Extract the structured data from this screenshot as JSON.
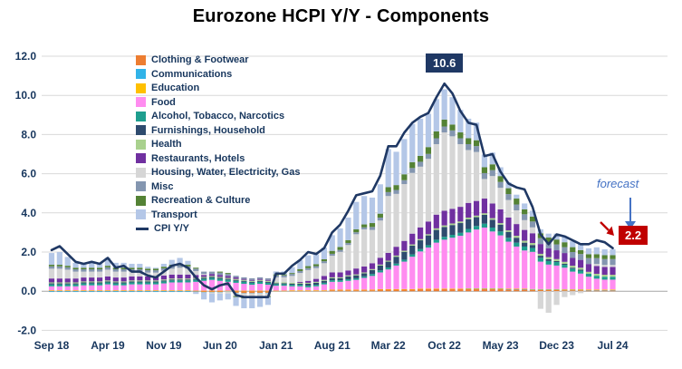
{
  "title": "Eurozone HCPI Y/Y - Components",
  "annotations": {
    "peak": {
      "label": "10.6"
    },
    "forecast": {
      "label": "forecast"
    },
    "end": {
      "label": "2.2"
    }
  },
  "colors": {
    "peak_box": "#1F3864",
    "end_box": "#C00000",
    "forecast": "#4472C4",
    "grid": "#D9D9D9",
    "zero_line": "#A6A6A6",
    "axis_text": "#17365D",
    "line": "#1F3864"
  },
  "chart_data": {
    "type": "bar",
    "subtype": "stacked-bar-with-line-overlay",
    "title": "Eurozone HCPI Y/Y - Components",
    "xlabel": "",
    "ylabel": "",
    "ylim": [
      -2.0,
      12.0
    ],
    "ytick_step": 2.0,
    "grid": "horizontal",
    "legend_position": "inside-top-left",
    "x_tick_every": 7,
    "yticks": [
      {
        "v": 12,
        "label": "12.0"
      },
      {
        "v": 10,
        "label": "10.0"
      },
      {
        "v": 8,
        "label": "8.0"
      },
      {
        "v": 6,
        "label": "6.0"
      },
      {
        "v": 4,
        "label": "4.0"
      },
      {
        "v": 2,
        "label": "2.0"
      },
      {
        "v": 0,
        "label": "0.0"
      },
      {
        "v": -2,
        "label": "-2.0"
      }
    ],
    "categories": [
      "Sep 18",
      "Oct 18",
      "Nov 18",
      "Dec 18",
      "Jan 19",
      "Feb 19",
      "Mar 19",
      "Apr 19",
      "May 19",
      "Jun 19",
      "Jul 19",
      "Aug 19",
      "Sep 19",
      "Oct 19",
      "Nov 19",
      "Dec 19",
      "Jan 20",
      "Feb 20",
      "Mar 20",
      "Apr 20",
      "May 20",
      "Jun 20",
      "Jul 20",
      "Aug 20",
      "Sep 20",
      "Oct 20",
      "Nov 20",
      "Dec 20",
      "Jan 21",
      "Feb 21",
      "Mar 21",
      "Apr 21",
      "May 21",
      "Jun 21",
      "Jul 21",
      "Aug 21",
      "Sep 21",
      "Oct 21",
      "Nov 21",
      "Dec 21",
      "Jan 22",
      "Feb 22",
      "Mar 22",
      "Apr 22",
      "May 22",
      "Jun 22",
      "Jul 22",
      "Aug 22",
      "Sep 22",
      "Oct 22",
      "Nov 22",
      "Dec 22",
      "Jan 23",
      "Feb 23",
      "Mar 23",
      "Apr 23",
      "May 23",
      "Jun 23",
      "Jul 23",
      "Aug 23",
      "Sep 23",
      "Oct 23",
      "Nov 23",
      "Dec 23",
      "Jan 24",
      "Feb 24",
      "Mar 24",
      "Apr 24",
      "May 24",
      "Jun 24",
      "Jul 24"
    ],
    "series": [
      {
        "name": "Clothing & Footwear",
        "color": "#ED7D31",
        "values": [
          0.02,
          0.02,
          0.02,
          0.02,
          0.02,
          0.02,
          0.02,
          0.02,
          0.02,
          0.02,
          0.02,
          0.02,
          0.02,
          0.02,
          0.02,
          0.02,
          0.02,
          0.02,
          -0.02,
          -0.05,
          -0.05,
          -0.05,
          0.0,
          -0.08,
          -0.1,
          -0.1,
          -0.08,
          -0.08,
          0.0,
          0.0,
          0.02,
          0.02,
          0.02,
          0.02,
          0.02,
          0.05,
          0.05,
          0.05,
          0.05,
          0.05,
          0.05,
          0.08,
          0.08,
          0.08,
          0.08,
          0.08,
          0.1,
          0.1,
          0.1,
          0.1,
          0.1,
          0.1,
          0.1,
          0.1,
          0.1,
          0.1,
          0.1,
          0.08,
          0.08,
          0.08,
          0.06,
          0.06,
          0.06,
          0.06,
          0.05,
          0.05,
          0.05,
          0.04,
          0.04,
          0.04,
          0.04
        ]
      },
      {
        "name": "Communications",
        "color": "#31B3E8",
        "values": [
          -0.04,
          -0.04,
          -0.04,
          -0.04,
          -0.04,
          -0.04,
          -0.04,
          -0.04,
          -0.04,
          -0.04,
          -0.04,
          -0.04,
          -0.04,
          -0.04,
          -0.04,
          -0.04,
          -0.04,
          -0.04,
          -0.02,
          -0.02,
          -0.02,
          -0.02,
          -0.02,
          -0.02,
          -0.02,
          -0.02,
          -0.02,
          -0.02,
          0.0,
          0.0,
          0.0,
          0.0,
          0.0,
          0.0,
          0.0,
          0.0,
          0.0,
          0.0,
          0.0,
          0.0,
          0.0,
          0.0,
          0.0,
          0.0,
          0.0,
          0.0,
          0.0,
          0.0,
          0.0,
          0.0,
          0.0,
          0.0,
          0.02,
          0.02,
          0.02,
          0.02,
          0.02,
          0.02,
          0.02,
          0.02,
          0.02,
          0.02,
          0.02,
          0.02,
          0.02,
          0.02,
          0.02,
          0.02,
          0.02,
          0.02,
          0.02
        ]
      },
      {
        "name": "Education",
        "color": "#FFC000",
        "values": [
          0.03,
          0.03,
          0.03,
          0.03,
          0.03,
          0.03,
          0.03,
          0.03,
          0.03,
          0.03,
          0.03,
          0.03,
          0.03,
          0.03,
          0.03,
          0.03,
          0.03,
          0.03,
          0.03,
          0.03,
          0.03,
          0.03,
          0.03,
          0.03,
          0.03,
          0.03,
          0.03,
          0.03,
          0.03,
          0.03,
          0.03,
          0.03,
          0.03,
          0.03,
          0.03,
          0.03,
          0.03,
          0.03,
          0.03,
          0.03,
          0.03,
          0.03,
          0.03,
          0.03,
          0.03,
          0.03,
          0.03,
          0.03,
          0.03,
          0.03,
          0.03,
          0.03,
          0.03,
          0.03,
          0.03,
          0.03,
          0.03,
          0.03,
          0.03,
          0.03,
          0.03,
          0.03,
          0.03,
          0.03,
          0.03,
          0.03,
          0.03,
          0.03,
          0.03,
          0.03,
          0.03
        ]
      },
      {
        "name": "Food",
        "color": "#FF8CF0",
        "values": [
          0.2,
          0.2,
          0.2,
          0.2,
          0.25,
          0.25,
          0.25,
          0.3,
          0.25,
          0.25,
          0.3,
          0.3,
          0.3,
          0.3,
          0.35,
          0.4,
          0.4,
          0.4,
          0.45,
          0.5,
          0.55,
          0.5,
          0.45,
          0.4,
          0.35,
          0.3,
          0.35,
          0.3,
          0.25,
          0.25,
          0.2,
          0.2,
          0.15,
          0.2,
          0.3,
          0.4,
          0.4,
          0.45,
          0.5,
          0.6,
          0.7,
          0.85,
          1.0,
          1.2,
          1.4,
          1.65,
          1.9,
          2.1,
          2.35,
          2.5,
          2.6,
          2.7,
          2.85,
          3.0,
          3.1,
          2.9,
          2.7,
          2.4,
          2.15,
          1.95,
          1.9,
          1.4,
          1.25,
          1.2,
          1.1,
          0.9,
          0.8,
          0.65,
          0.55,
          0.5,
          0.5
        ]
      },
      {
        "name": "Alcohol, Tobacco, Narcotics",
        "color": "#1E9E8E",
        "values": [
          0.1,
          0.1,
          0.1,
          0.1,
          0.1,
          0.1,
          0.1,
          0.1,
          0.1,
          0.1,
          0.1,
          0.1,
          0.1,
          0.1,
          0.1,
          0.1,
          0.1,
          0.1,
          0.1,
          0.1,
          0.1,
          0.1,
          0.1,
          0.1,
          0.1,
          0.1,
          0.1,
          0.1,
          0.08,
          0.08,
          0.08,
          0.08,
          0.08,
          0.08,
          0.08,
          0.08,
          0.08,
          0.08,
          0.08,
          0.08,
          0.1,
          0.1,
          0.1,
          0.1,
          0.1,
          0.12,
          0.12,
          0.12,
          0.15,
          0.15,
          0.15,
          0.15,
          0.18,
          0.18,
          0.2,
          0.2,
          0.2,
          0.2,
          0.2,
          0.2,
          0.2,
          0.2,
          0.18,
          0.18,
          0.15,
          0.15,
          0.15,
          0.15,
          0.15,
          0.15,
          0.15
        ]
      },
      {
        "name": "Furnishings, Household",
        "color": "#2E4B6E",
        "values": [
          0.05,
          0.05,
          0.05,
          0.05,
          0.05,
          0.05,
          0.05,
          0.05,
          0.05,
          0.05,
          0.05,
          0.05,
          0.05,
          0.05,
          0.05,
          0.05,
          0.05,
          0.05,
          0.05,
          0.05,
          0.05,
          0.05,
          0.05,
          0.05,
          0.05,
          0.05,
          0.05,
          0.05,
          0.05,
          0.05,
          0.05,
          0.05,
          0.1,
          0.1,
          0.1,
          0.1,
          0.1,
          0.15,
          0.15,
          0.15,
          0.2,
          0.25,
          0.3,
          0.35,
          0.4,
          0.45,
          0.45,
          0.5,
          0.5,
          0.5,
          0.5,
          0.5,
          0.5,
          0.45,
          0.45,
          0.4,
          0.35,
          0.3,
          0.25,
          0.2,
          0.15,
          0.1,
          0.1,
          0.05,
          0.05,
          0.05,
          0.05,
          0.0,
          0.0,
          0.0,
          0.0
        ]
      },
      {
        "name": "Health",
        "color": "#A9D18E",
        "values": [
          0.05,
          0.05,
          0.05,
          0.05,
          0.05,
          0.05,
          0.05,
          0.05,
          0.05,
          0.05,
          0.05,
          0.05,
          0.05,
          0.05,
          0.05,
          0.05,
          0.05,
          0.05,
          0.05,
          0.05,
          0.05,
          0.05,
          0.05,
          0.05,
          0.05,
          0.05,
          0.05,
          0.05,
          0.05,
          0.05,
          0.05,
          0.05,
          0.05,
          0.05,
          0.05,
          0.05,
          0.05,
          0.05,
          0.05,
          0.05,
          0.05,
          0.05,
          0.05,
          0.06,
          0.06,
          0.06,
          0.06,
          0.06,
          0.08,
          0.08,
          0.08,
          0.08,
          0.08,
          0.08,
          0.08,
          0.08,
          0.08,
          0.08,
          0.1,
          0.1,
          0.1,
          0.1,
          0.1,
          0.1,
          0.1,
          0.1,
          0.1,
          0.1,
          0.1,
          0.1,
          0.1
        ]
      },
      {
        "name": "Restaurants, Hotels",
        "color": "#7030A0",
        "values": [
          0.2,
          0.2,
          0.2,
          0.2,
          0.2,
          0.2,
          0.2,
          0.2,
          0.2,
          0.2,
          0.2,
          0.2,
          0.2,
          0.2,
          0.2,
          0.2,
          0.2,
          0.2,
          0.15,
          0.1,
          0.1,
          0.1,
          0.1,
          0.08,
          0.05,
          0.05,
          0.05,
          0.05,
          0.0,
          0.0,
          0.0,
          0.05,
          0.1,
          0.15,
          0.2,
          0.25,
          0.25,
          0.25,
          0.3,
          0.3,
          0.3,
          0.35,
          0.4,
          0.45,
          0.5,
          0.55,
          0.6,
          0.65,
          0.7,
          0.75,
          0.75,
          0.75,
          0.75,
          0.75,
          0.75,
          0.75,
          0.7,
          0.65,
          0.6,
          0.55,
          0.5,
          0.5,
          0.45,
          0.45,
          0.45,
          0.4,
          0.4,
          0.4,
          0.4,
          0.4,
          0.4
        ]
      },
      {
        "name": "Housing, Water, Electricity, Gas",
        "color": "#D6D6D6",
        "values": [
          0.5,
          0.5,
          0.45,
          0.35,
          0.3,
          0.3,
          0.3,
          0.35,
          0.3,
          0.3,
          0.25,
          0.25,
          0.2,
          0.2,
          0.25,
          0.3,
          0.35,
          0.3,
          0.2,
          0.05,
          -0.05,
          -0.05,
          -0.1,
          -0.15,
          -0.2,
          -0.2,
          -0.2,
          -0.15,
          0.25,
          0.25,
          0.35,
          0.45,
          0.55,
          0.55,
          0.65,
          0.85,
          1.05,
          1.3,
          1.75,
          1.9,
          1.7,
          1.9,
          2.9,
          2.7,
          2.9,
          3.1,
          3.1,
          3.2,
          3.6,
          4.0,
          3.7,
          3.2,
          2.7,
          2.5,
          1.0,
          1.4,
          1.1,
          0.9,
          0.7,
          0.5,
          0.3,
          -0.9,
          -1.1,
          -0.7,
          -0.3,
          -0.2,
          -0.1,
          0.0,
          0.1,
          0.1,
          0.1
        ]
      },
      {
        "name": "Misc",
        "color": "#8496B0",
        "values": [
          0.12,
          0.12,
          0.12,
          0.12,
          0.12,
          0.12,
          0.12,
          0.12,
          0.12,
          0.12,
          0.12,
          0.12,
          0.12,
          0.12,
          0.12,
          0.12,
          0.12,
          0.12,
          0.12,
          0.12,
          0.12,
          0.12,
          0.1,
          0.08,
          0.08,
          0.08,
          0.08,
          0.08,
          0.1,
          0.1,
          0.1,
          0.1,
          0.1,
          0.1,
          0.1,
          0.1,
          0.1,
          0.1,
          0.1,
          0.1,
          0.15,
          0.15,
          0.2,
          0.2,
          0.2,
          0.25,
          0.25,
          0.25,
          0.3,
          0.3,
          0.3,
          0.3,
          0.3,
          0.3,
          0.3,
          0.3,
          0.3,
          0.3,
          0.3,
          0.3,
          0.3,
          0.3,
          0.3,
          0.3,
          0.3,
          0.3,
          0.3,
          0.3,
          0.3,
          0.3,
          0.3
        ]
      },
      {
        "name": "Recreation & Culture",
        "color": "#548235",
        "values": [
          0.08,
          0.08,
          0.08,
          0.08,
          0.08,
          0.08,
          0.08,
          0.08,
          0.08,
          0.08,
          0.08,
          0.08,
          0.08,
          0.08,
          0.08,
          0.08,
          0.08,
          0.08,
          0.05,
          0.0,
          0.0,
          0.05,
          0.05,
          -0.05,
          -0.05,
          -0.05,
          -0.05,
          -0.05,
          0.05,
          0.05,
          0.05,
          0.1,
          0.1,
          0.1,
          0.1,
          0.15,
          0.15,
          0.15,
          0.15,
          0.15,
          0.2,
          0.2,
          0.25,
          0.25,
          0.3,
          0.3,
          0.3,
          0.35,
          0.35,
          0.35,
          0.3,
          0.3,
          0.3,
          0.3,
          0.3,
          0.3,
          0.3,
          0.3,
          0.3,
          0.25,
          0.25,
          0.25,
          0.25,
          0.25,
          0.25,
          0.25,
          0.2,
          0.2,
          0.2,
          0.2,
          0.2
        ]
      },
      {
        "name": "Transport",
        "color": "#B4C7E7",
        "values": [
          0.6,
          0.65,
          0.45,
          0.25,
          0.2,
          0.25,
          0.25,
          0.4,
          0.25,
          0.25,
          0.2,
          0.2,
          0.1,
          0.05,
          0.15,
          0.25,
          0.3,
          0.2,
          -0.1,
          -0.35,
          -0.45,
          -0.35,
          -0.3,
          -0.45,
          -0.5,
          -0.5,
          -0.45,
          -0.4,
          0.15,
          0.15,
          0.3,
          0.45,
          0.55,
          0.5,
          0.6,
          0.8,
          0.95,
          1.15,
          1.4,
          1.45,
          1.3,
          1.5,
          1.95,
          1.7,
          1.8,
          1.95,
          1.9,
          1.7,
          1.65,
          1.55,
          1.4,
          1.15,
          1.0,
          0.9,
          0.65,
          0.6,
          0.45,
          0.3,
          0.2,
          0.3,
          0.3,
          0.2,
          0.2,
          0.3,
          0.3,
          0.3,
          0.3,
          0.3,
          0.35,
          0.3,
          0.3
        ]
      }
    ],
    "line_series": {
      "name": "CPI Y/Y",
      "color": "#1F3864",
      "values": [
        2.1,
        2.3,
        1.9,
        1.5,
        1.4,
        1.5,
        1.4,
        1.7,
        1.2,
        1.3,
        1.0,
        1.0,
        0.8,
        0.7,
        1.0,
        1.3,
        1.4,
        1.2,
        0.7,
        0.3,
        0.1,
        0.3,
        0.4,
        -0.2,
        -0.3,
        -0.3,
        -0.3,
        -0.3,
        0.9,
        0.9,
        1.3,
        1.6,
        2.0,
        1.9,
        2.2,
        3.0,
        3.4,
        4.1,
        4.9,
        5.0,
        5.1,
        5.9,
        7.4,
        7.4,
        8.1,
        8.6,
        8.9,
        9.1,
        9.9,
        10.6,
        10.1,
        9.2,
        8.6,
        8.5,
        6.9,
        7.0,
        6.1,
        5.5,
        5.3,
        5.2,
        4.3,
        2.9,
        2.4,
        2.9,
        2.8,
        2.6,
        2.4,
        2.4,
        2.6,
        2.5,
        2.2
      ]
    }
  }
}
